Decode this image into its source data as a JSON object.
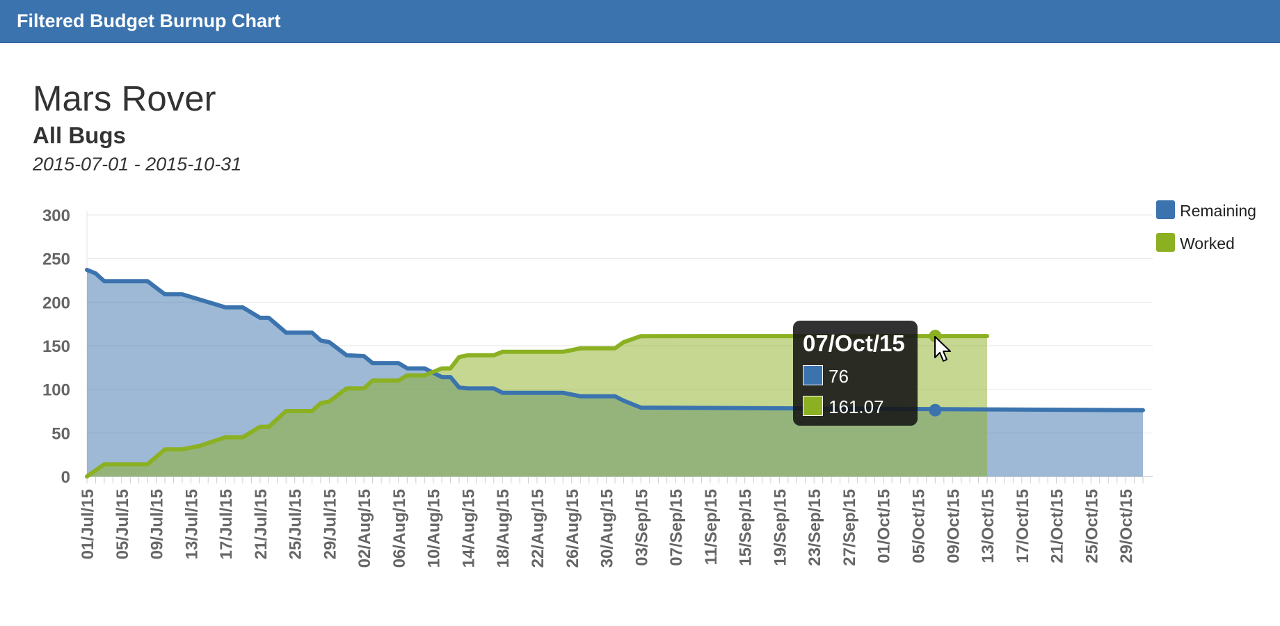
{
  "header": {
    "title": "Filtered Budget Burnup Chart"
  },
  "chart_header": {
    "title": "Mars Rover",
    "subtitle": "All Bugs",
    "date_range": "2015-07-01 - 2015-10-31"
  },
  "legend": [
    {
      "label": "Remaining",
      "color": "#3b73ae"
    },
    {
      "label": "Worked",
      "color": "#8bb022"
    }
  ],
  "tooltip": {
    "date": "07/Oct/15",
    "remaining": "76",
    "worked": "161.07"
  },
  "chart_data": {
    "type": "area",
    "title": "Mars Rover",
    "subtitle": "All Bugs",
    "x_range": [
      "2015-07-01",
      "2015-10-31"
    ],
    "ylim": [
      0,
      300
    ],
    "yticks": [
      0,
      50,
      100,
      150,
      200,
      250,
      300
    ],
    "grid": "horizontal",
    "legend_position": "right",
    "x_tick_labels": [
      "01/Jul/15",
      "05/Jul/15",
      "09/Jul/15",
      "13/Jul/15",
      "17/Jul/15",
      "21/Jul/15",
      "25/Jul/15",
      "29/Jul/15",
      "02/Aug/15",
      "06/Aug/15",
      "10/Aug/15",
      "14/Aug/15",
      "18/Aug/15",
      "22/Aug/15",
      "26/Aug/15",
      "30/Aug/15",
      "03/Sep/15",
      "07/Sep/15",
      "11/Sep/15",
      "15/Sep/15",
      "19/Sep/15",
      "23/Sep/15",
      "27/Sep/15",
      "01/Oct/15",
      "05/Oct/15",
      "09/Oct/15",
      "13/Oct/15",
      "17/Oct/15",
      "21/Oct/15",
      "25/Oct/15",
      "29/Oct/15"
    ],
    "series": [
      {
        "name": "Remaining",
        "color": "#3b73ae",
        "points": [
          [
            "2015-07-01",
            237
          ],
          [
            "2015-07-02",
            233
          ],
          [
            "2015-07-03",
            224
          ],
          [
            "2015-07-08",
            224
          ],
          [
            "2015-07-10",
            209
          ],
          [
            "2015-07-12",
            209
          ],
          [
            "2015-07-14",
            203
          ],
          [
            "2015-07-17",
            194
          ],
          [
            "2015-07-19",
            194
          ],
          [
            "2015-07-21",
            182
          ],
          [
            "2015-07-22",
            182
          ],
          [
            "2015-07-24",
            165
          ],
          [
            "2015-07-27",
            165
          ],
          [
            "2015-07-28",
            156
          ],
          [
            "2015-07-29",
            154
          ],
          [
            "2015-07-31",
            139
          ],
          [
            "2015-08-02",
            138
          ],
          [
            "2015-08-03",
            130
          ],
          [
            "2015-08-06",
            130
          ],
          [
            "2015-08-07",
            124
          ],
          [
            "2015-08-09",
            124
          ],
          [
            "2015-08-11",
            114
          ],
          [
            "2015-08-12",
            114
          ],
          [
            "2015-08-13",
            102
          ],
          [
            "2015-08-14",
            101
          ],
          [
            "2015-08-17",
            101
          ],
          [
            "2015-08-18",
            96
          ],
          [
            "2015-08-25",
            96
          ],
          [
            "2015-08-27",
            92
          ],
          [
            "2015-08-31",
            92
          ],
          [
            "2015-09-01",
            87
          ],
          [
            "2015-09-03",
            79
          ],
          [
            "2015-10-31",
            76
          ]
        ]
      },
      {
        "name": "Worked",
        "color": "#8bb022",
        "points": [
          [
            "2015-07-01",
            0
          ],
          [
            "2015-07-03",
            14
          ],
          [
            "2015-07-08",
            14
          ],
          [
            "2015-07-10",
            31
          ],
          [
            "2015-07-12",
            31
          ],
          [
            "2015-07-14",
            35
          ],
          [
            "2015-07-17",
            45
          ],
          [
            "2015-07-19",
            45
          ],
          [
            "2015-07-21",
            57
          ],
          [
            "2015-07-22",
            57
          ],
          [
            "2015-07-24",
            75
          ],
          [
            "2015-07-27",
            75
          ],
          [
            "2015-07-28",
            84
          ],
          [
            "2015-07-29",
            86
          ],
          [
            "2015-07-31",
            101
          ],
          [
            "2015-08-02",
            101
          ],
          [
            "2015-08-03",
            110
          ],
          [
            "2015-08-06",
            110
          ],
          [
            "2015-08-07",
            116
          ],
          [
            "2015-08-09",
            116
          ],
          [
            "2015-08-11",
            124
          ],
          [
            "2015-08-12",
            124
          ],
          [
            "2015-08-13",
            137
          ],
          [
            "2015-08-14",
            139
          ],
          [
            "2015-08-17",
            139
          ],
          [
            "2015-08-18",
            143
          ],
          [
            "2015-08-25",
            143
          ],
          [
            "2015-08-27",
            147
          ],
          [
            "2015-08-31",
            147
          ],
          [
            "2015-09-01",
            154
          ],
          [
            "2015-09-03",
            161
          ],
          [
            "2015-10-13",
            161.07
          ]
        ]
      }
    ]
  }
}
